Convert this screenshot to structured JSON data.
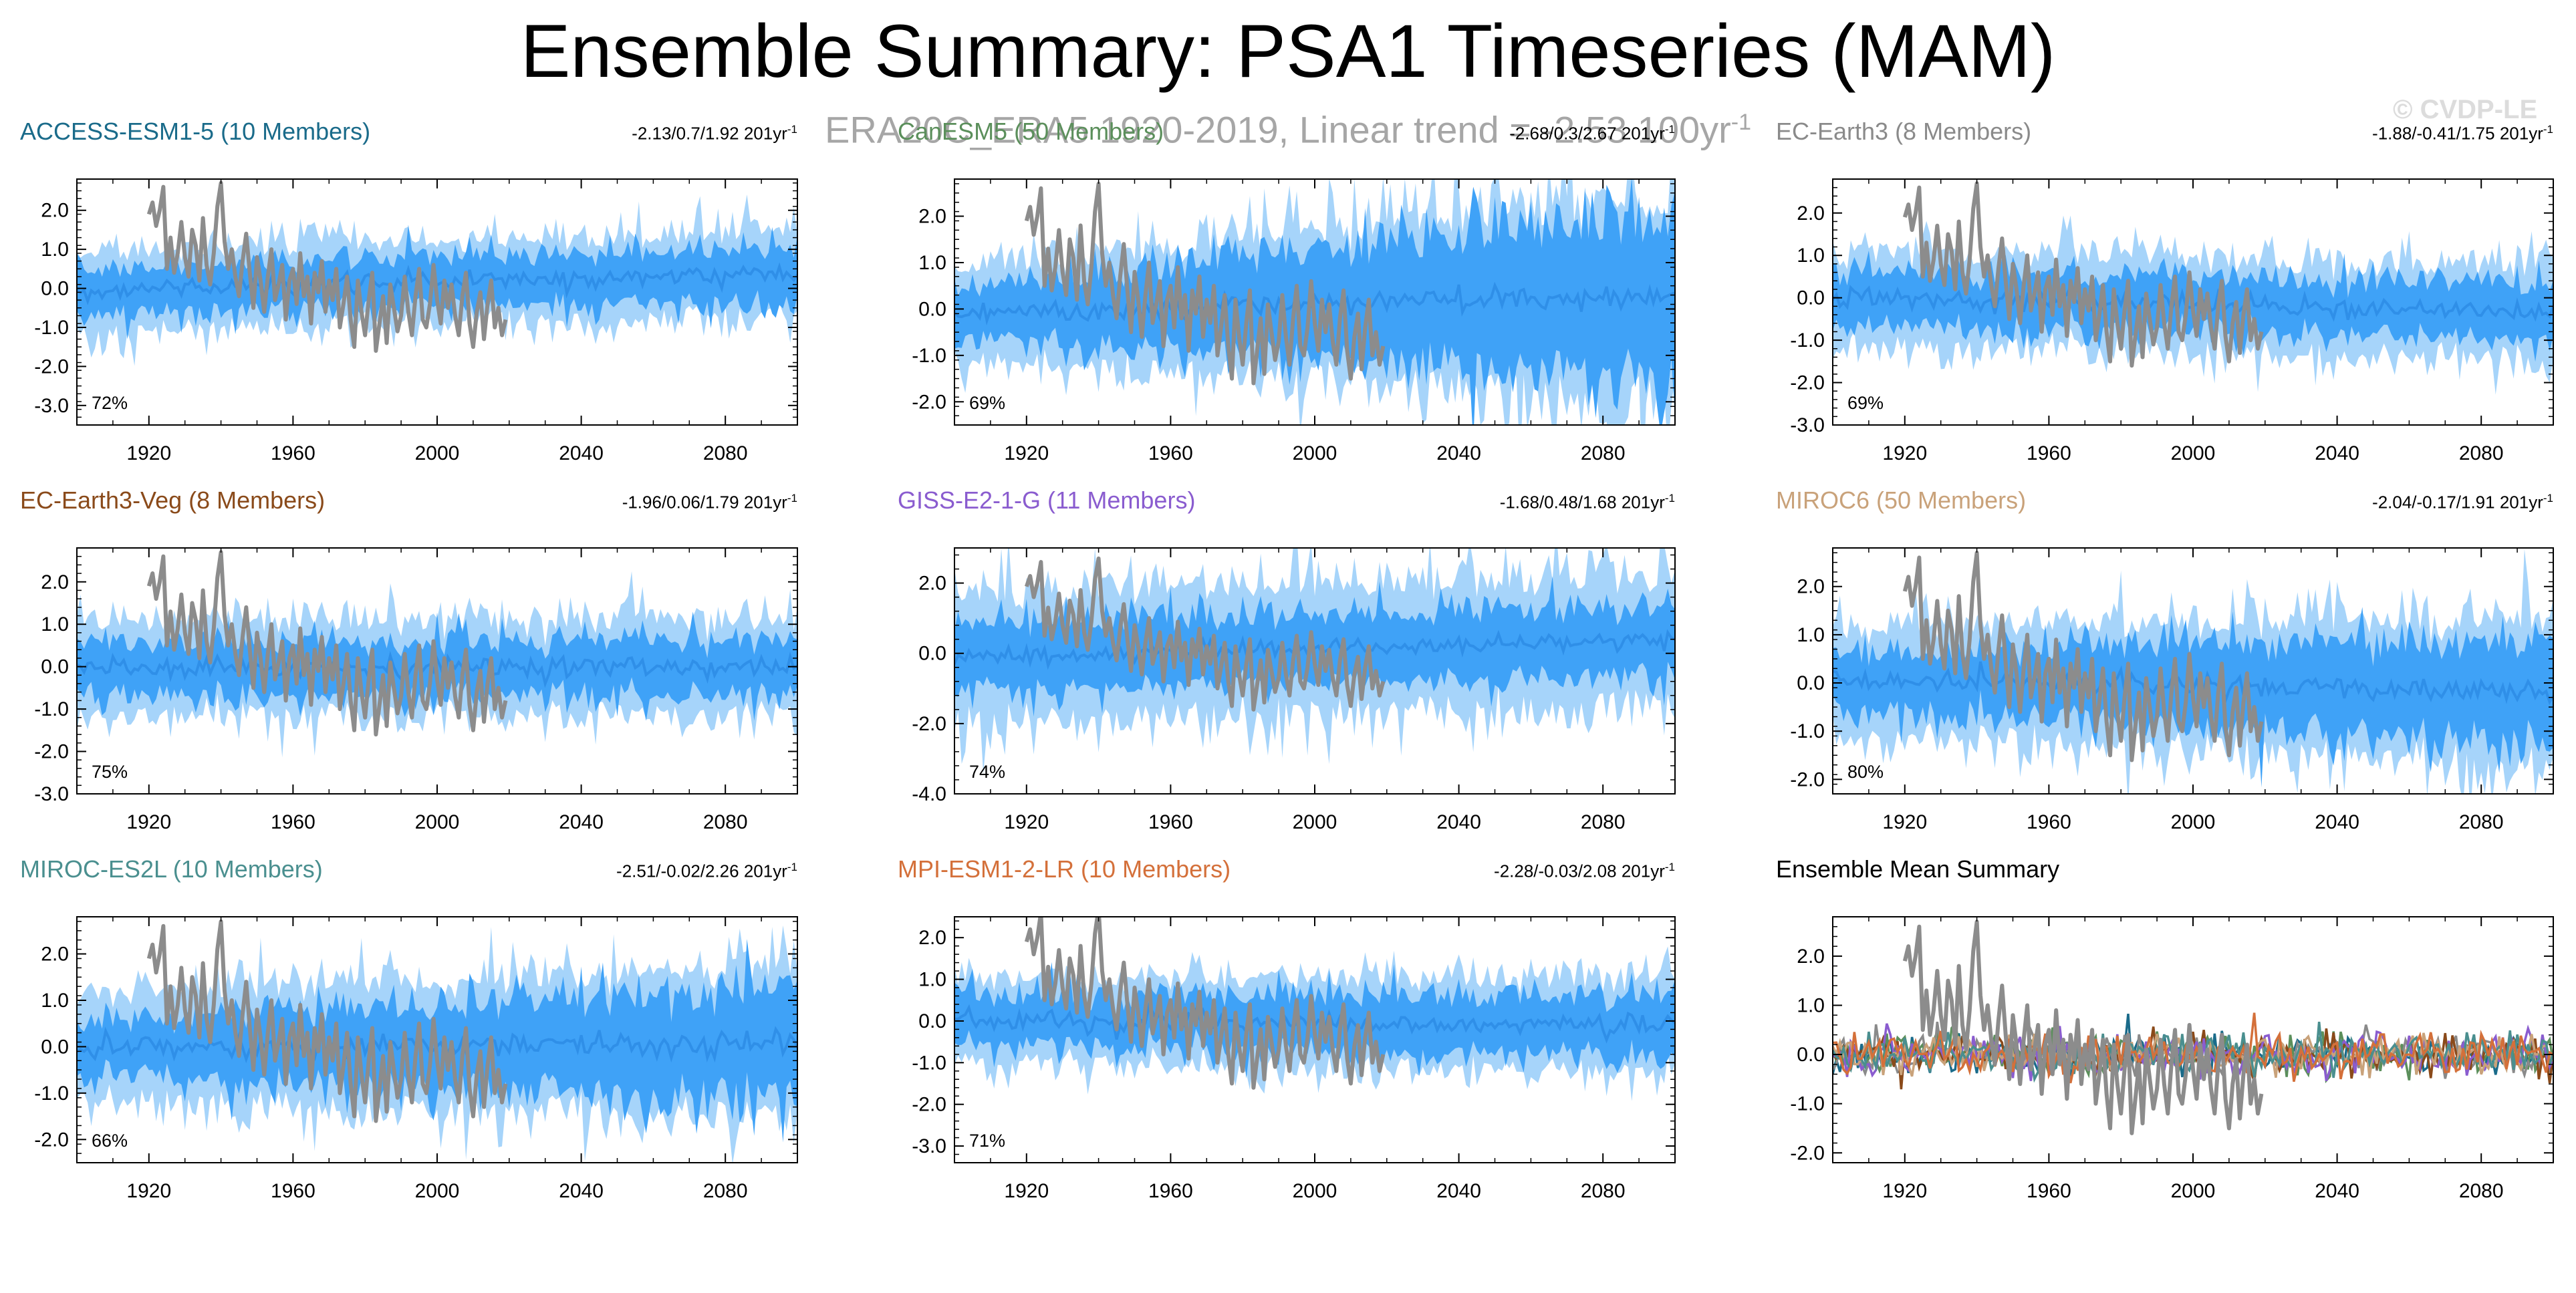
{
  "title": "Ensemble Summary: PSA1 Timeseries (MAM)",
  "subtitle": "ERA20C_ERA5 1920-2019, Linear trend = -2.53 100yr",
  "subtitle_superscript": "-1",
  "copyright": "© CVDP-LE",
  "colors": {
    "outer_band": "#a6d4fa",
    "inner_band": "#3fa2f7",
    "ensemble_mean": "#2f8fe8",
    "observations": "#8c8c8c"
  },
  "chart_data": [
    {
      "type": "area",
      "name": "ACCESS-ESM1-5 (10 Members)",
      "title_color": "#1a6b8a",
      "stats": "-2.13/0.7/1.92 201yr",
      "stats_sup": "-1",
      "pct": "72%",
      "xlim": [
        1900,
        2100
      ],
      "ylim": [
        -3.5,
        2.8
      ],
      "yticks": [
        2.0,
        1.0,
        0.0,
        -1.0,
        -2.0,
        -3.0
      ],
      "ytick_labels": [
        "2.0",
        "1.0",
        "0.0",
        "-1.0",
        "-2.0",
        "-3.0"
      ],
      "xticks": [
        1920,
        1960,
        2000,
        2040,
        2080
      ],
      "xtick_labels": [
        "1920",
        "1960",
        "2000",
        "2040",
        "2080"
      ],
      "outer_sd": [
        1.05,
        1.05
      ],
      "inner_sd": [
        0.6,
        0.7
      ],
      "mean_trend": [
        -0.05,
        0.4
      ],
      "obs_range": [
        1920,
        2019
      ]
    },
    {
      "type": "area",
      "name": "CanESM5 (50 Members)",
      "title_color": "#5b8f5b",
      "stats": "-2.68/0.3/2.67 201yr",
      "stats_sup": "-1",
      "pct": "69%",
      "xlim": [
        1900,
        2100
      ],
      "ylim": [
        -2.5,
        2.8
      ],
      "yticks": [
        2.0,
        1.0,
        0.0,
        -1.0,
        -2.0
      ],
      "ytick_labels": [
        "2.0",
        "1.0",
        "0.0",
        "-1.0",
        "-2.0"
      ],
      "xticks": [
        1920,
        1960,
        2000,
        2040,
        2080
      ],
      "xtick_labels": [
        "1920",
        "1960",
        "2000",
        "2040",
        "2080"
      ],
      "outer_sd": [
        1.0,
        2.2
      ],
      "inner_sd": [
        0.55,
        1.8
      ],
      "mean_trend": [
        -0.1,
        0.3
      ],
      "obs_range": [
        1920,
        2019
      ]
    },
    {
      "type": "area",
      "name": "EC-Earth3 (8 Members)",
      "title_color": "#8a8a8a",
      "stats": "-1.88/-0.41/1.75 201yr",
      "stats_sup": "-1",
      "pct": "69%",
      "xlim": [
        1900,
        2100
      ],
      "ylim": [
        -3.0,
        2.8
      ],
      "yticks": [
        2.0,
        1.0,
        0.0,
        -1.0,
        -2.0,
        -3.0
      ],
      "ytick_labels": [
        "2.0",
        "1.0",
        "0.0",
        "-1.0",
        "-2.0",
        "-3.0"
      ],
      "xticks": [
        1920,
        1960,
        2000,
        2040,
        2080
      ],
      "xtick_labels": [
        "1920",
        "1960",
        "2000",
        "2040",
        "2080"
      ],
      "outer_sd": [
        1.1,
        1.1
      ],
      "inner_sd": [
        0.65,
        0.65
      ],
      "mean_trend": [
        0.0,
        -0.3
      ],
      "obs_range": [
        1920,
        2019
      ]
    },
    {
      "type": "area",
      "name": "EC-Earth3-Veg (8 Members)",
      "title_color": "#8a4a1a",
      "stats": "-1.96/0.06/1.79 201yr",
      "stats_sup": "-1",
      "pct": "75%",
      "xlim": [
        1900,
        2100
      ],
      "ylim": [
        -3.0,
        2.8
      ],
      "yticks": [
        2.0,
        1.0,
        0.0,
        -1.0,
        -2.0,
        -3.0
      ],
      "ytick_labels": [
        "2.0",
        "1.0",
        "0.0",
        "-1.0",
        "-2.0",
        "-3.0"
      ],
      "xticks": [
        1920,
        1960,
        2000,
        2040,
        2080
      ],
      "xtick_labels": [
        "1920",
        "1960",
        "2000",
        "2040",
        "2080"
      ],
      "outer_sd": [
        1.1,
        1.1
      ],
      "inner_sd": [
        0.65,
        0.65
      ],
      "mean_trend": [
        0.0,
        0.0
      ],
      "obs_range": [
        1920,
        2019
      ]
    },
    {
      "type": "area",
      "name": "GISS-E2-1-G (11 Members)",
      "title_color": "#8a5ccf",
      "stats": "-1.68/0.48/1.68 201yr",
      "stats_sup": "-1",
      "pct": "74%",
      "xlim": [
        1900,
        2100
      ],
      "ylim": [
        -4.0,
        3.0
      ],
      "yticks": [
        2.0,
        0.0,
        -2.0,
        -4.0
      ],
      "ytick_labels": [
        "2.0",
        "0.0",
        "-2.0",
        "-4.0"
      ],
      "xticks": [
        1920,
        1960,
        2000,
        2040,
        2080
      ],
      "xtick_labels": [
        "1920",
        "1960",
        "2000",
        "2040",
        "2080"
      ],
      "outer_sd": [
        1.8,
        1.8
      ],
      "inner_sd": [
        1.0,
        1.0
      ],
      "mean_trend": [
        -0.1,
        0.4
      ],
      "obs_range": [
        1920,
        2019
      ]
    },
    {
      "type": "area",
      "name": "MIROC6 (50 Members)",
      "title_color": "#c9a27a",
      "stats": "-2.04/-0.17/1.91 201yr",
      "stats_sup": "-1",
      "pct": "80%",
      "xlim": [
        1900,
        2100
      ],
      "ylim": [
        -2.3,
        2.8
      ],
      "yticks": [
        2.0,
        1.0,
        0.0,
        -1.0,
        -2.0
      ],
      "ytick_labels": [
        "2.0",
        "1.0",
        "0.0",
        "-1.0",
        "-2.0"
      ],
      "xticks": [
        1920,
        1960,
        2000,
        2040,
        2080
      ],
      "xtick_labels": [
        "1920",
        "1960",
        "2000",
        "2040",
        "2080"
      ],
      "outer_sd": [
        1.1,
        1.5
      ],
      "inner_sd": [
        0.6,
        1.1
      ],
      "mean_trend": [
        0.1,
        -0.2
      ],
      "obs_range": [
        1920,
        2019
      ]
    },
    {
      "type": "area",
      "name": "MIROC-ES2L (10 Members)",
      "title_color": "#4a8f8f",
      "stats": "-2.51/-0.02/2.26 201yr",
      "stats_sup": "-1",
      "pct": "66%",
      "xlim": [
        1900,
        2100
      ],
      "ylim": [
        -2.5,
        2.8
      ],
      "yticks": [
        2.0,
        1.0,
        0.0,
        -1.0,
        -2.0
      ],
      "ytick_labels": [
        "2.0",
        "1.0",
        "0.0",
        "-1.0",
        "-2.0"
      ],
      "xticks": [
        1920,
        1960,
        2000,
        2040,
        2080
      ],
      "xtick_labels": [
        "1920",
        "1960",
        "2000",
        "2040",
        "2080"
      ],
      "outer_sd": [
        1.1,
        1.6
      ],
      "inner_sd": [
        0.6,
        1.2
      ],
      "mean_trend": [
        0.0,
        0.1
      ],
      "obs_range": [
        1920,
        2019
      ]
    },
    {
      "type": "area",
      "name": "MPI-ESM1-2-LR (10 Members)",
      "title_color": "#d4703a",
      "stats": "-2.28/-0.03/2.08 201yr",
      "stats_sup": "-1",
      "pct": "71%",
      "xlim": [
        1900,
        2100
      ],
      "ylim": [
        -3.4,
        2.5
      ],
      "yticks": [
        2.0,
        1.0,
        0.0,
        -1.0,
        -2.0,
        -3.0
      ],
      "ytick_labels": [
        "2.0",
        "1.0",
        "0.0",
        "-1.0",
        "-2.0",
        "-3.0"
      ],
      "xticks": [
        1920,
        1960,
        2000,
        2040,
        2080
      ],
      "xtick_labels": [
        "1920",
        "1960",
        "2000",
        "2040",
        "2080"
      ],
      "outer_sd": [
        1.0,
        1.1
      ],
      "inner_sd": [
        0.6,
        0.75
      ],
      "mean_trend": [
        0.0,
        -0.1
      ],
      "obs_range": [
        1920,
        2019
      ]
    },
    {
      "type": "line",
      "name": "Ensemble Mean Summary",
      "title_color": "#000000",
      "stats": "",
      "stats_sup": "",
      "pct": "",
      "xlim": [
        1900,
        2100
      ],
      "ylim": [
        -2.2,
        2.8
      ],
      "yticks": [
        2.0,
        1.0,
        0.0,
        -1.0,
        -2.0
      ],
      "ytick_labels": [
        "2.0",
        "1.0",
        "0.0",
        "-1.0",
        "-2.0"
      ],
      "xticks": [
        1920,
        1960,
        2000,
        2040,
        2080
      ],
      "xtick_labels": [
        "1920",
        "1960",
        "2000",
        "2040",
        "2080"
      ],
      "series_colors": [
        "#1a6b8a",
        "#5b8f5b",
        "#8a8a8a",
        "#8a4a1a",
        "#8a5ccf",
        "#c9a27a",
        "#4a8f8f",
        "#d4703a"
      ],
      "obs_range": [
        1920,
        2019
      ]
    }
  ],
  "observations": {
    "name": "ERA20C_ERA5",
    "years": [
      1920,
      1921,
      1922,
      1923,
      1924,
      1925,
      1926,
      1927,
      1928,
      1929,
      1930,
      1931,
      1932,
      1933,
      1934,
      1935,
      1936,
      1937,
      1938,
      1939,
      1940,
      1941,
      1942,
      1943,
      1944,
      1945,
      1946,
      1947,
      1948,
      1949,
      1950,
      1951,
      1952,
      1953,
      1954,
      1955,
      1956,
      1957,
      1958,
      1959,
      1960,
      1961,
      1962,
      1963,
      1964,
      1965,
      1966,
      1967,
      1968,
      1969,
      1970,
      1971,
      1972,
      1973,
      1974,
      1975,
      1976,
      1977,
      1978,
      1979,
      1980,
      1981,
      1982,
      1983,
      1984,
      1985,
      1986,
      1987,
      1988,
      1989,
      1990,
      1991,
      1992,
      1993,
      1994,
      1995,
      1996,
      1997,
      1998,
      1999,
      2000,
      2001,
      2002,
      2003,
      2004,
      2005,
      2006,
      2007,
      2008,
      2009,
      2010,
      2011,
      2012,
      2013,
      2014,
      2015,
      2016,
      2017,
      2018,
      2019
    ],
    "values": [
      1.9,
      2.2,
      1.6,
      2.0,
      2.6,
      0.5,
      1.3,
      0.4,
      0.9,
      1.7,
      0.8,
      0.3,
      1.5,
      1.1,
      0.2,
      1.8,
      0.6,
      0.1,
      0.9,
      2.1,
      2.7,
      1.2,
      0.5,
      1.0,
      0.3,
      -0.2,
      0.7,
      1.4,
      0.4,
      -0.5,
      0.8,
      0.2,
      -0.6,
      0.3,
      1.0,
      -0.3,
      0.1,
      0.6,
      -0.8,
      0.2,
      0.5,
      -0.4,
      0.9,
      -0.2,
      0.3,
      -0.9,
      0.4,
      -0.1,
      0.7,
      -0.6,
      0.2,
      -0.3,
      0.5,
      -1.0,
      -0.4,
      0.3,
      -0.8,
      -1.5,
      0.2,
      -0.6,
      -1.2,
      -0.3,
      0.4,
      -1.6,
      -0.9,
      -0.2,
      -1.4,
      0.1,
      -0.5,
      -1.1,
      -0.7,
      0.3,
      -0.6,
      -1.2,
      -0.2,
      0.5,
      -0.8,
      -1.0,
      -0.4,
      0.6,
      -0.3,
      -0.9,
      0.2,
      -0.5,
      0.1,
      -0.7,
      -1.2,
      -0.2,
      0.4,
      -0.9,
      -1.5,
      -0.6,
      -0.1,
      -1.3,
      -0.4,
      0.2,
      -1.0,
      -0.5,
      -1.2,
      -0.8
    ]
  }
}
